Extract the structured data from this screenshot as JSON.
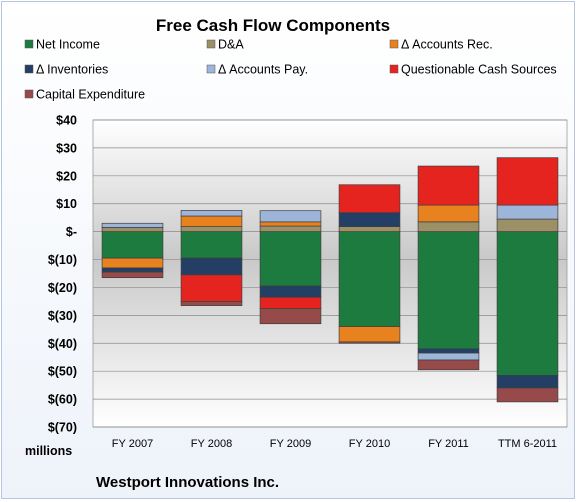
{
  "chart_data": {
    "type": "bar",
    "stacked": true,
    "title": "Free Cash Flow Components",
    "units_label": "millions",
    "company": "Westport Innovations Inc.",
    "categories": [
      "FY 2007",
      "FY 2008",
      "FY 2009",
      "FY 2010",
      "FY 2011",
      "TTM 6-2011"
    ],
    "ylim": [
      -70,
      40
    ],
    "yticks": [
      40,
      30,
      20,
      10,
      0,
      -10,
      -20,
      -30,
      -40,
      -50,
      -60,
      -70
    ],
    "ytick_labels": [
      "$40",
      "$30",
      "$20",
      "$10",
      "$-",
      "$(10)",
      "$(20)",
      "$(30)",
      "$(40)",
      "$(50)",
      "$(60)",
      "$(70)"
    ],
    "grid": true,
    "legend_position": "top",
    "series": [
      {
        "name": "Net Income",
        "color": "#1e7b3f",
        "values": [
          -9.5,
          -9.5,
          -19.5,
          -34,
          -42,
          -51.5
        ]
      },
      {
        "name": "D&A",
        "color": "#9c9066",
        "values": [
          1.5,
          1.8,
          2.0,
          1.8,
          3.5,
          4.5
        ]
      },
      {
        "name": "Δ Accounts Rec.",
        "color": "#e8821e",
        "values": [
          -3.5,
          3.8,
          1.5,
          -5.5,
          6.0,
          0
        ]
      },
      {
        "name": "Δ Inventories",
        "color": "#243f66",
        "values": [
          -1.5,
          -6.0,
          -4.0,
          5.0,
          -1.5,
          -4.5
        ]
      },
      {
        "name": "Δ Accounts Pay.",
        "color": "#9db5d8",
        "values": [
          1.5,
          2.0,
          4.0,
          0,
          -2.5,
          5.0
        ]
      },
      {
        "name": "Questionable Cash Sources",
        "color": "#e52420",
        "values": [
          0,
          -9.5,
          -4.0,
          10.0,
          14.0,
          17.0
        ]
      },
      {
        "name": "Capital Expenditure",
        "color": "#964a4a",
        "values": [
          -2.0,
          -1.5,
          -5.5,
          -0.5,
          -3.5,
          -5.0
        ]
      }
    ]
  }
}
